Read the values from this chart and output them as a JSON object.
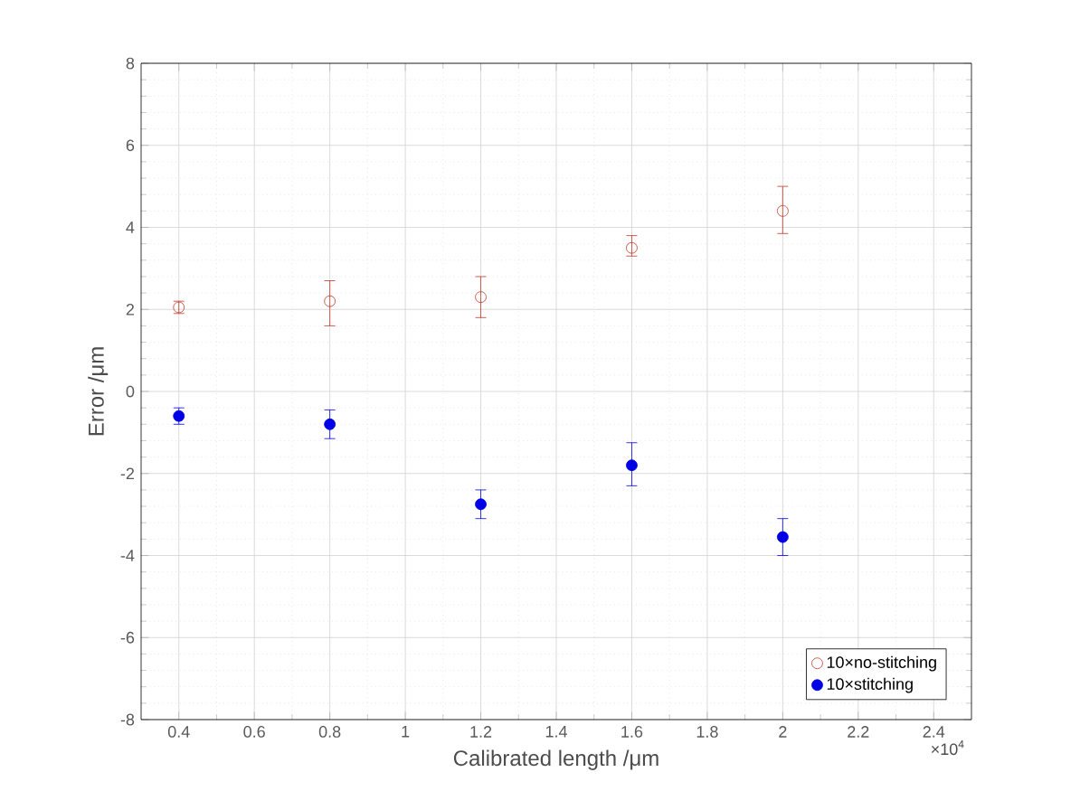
{
  "chart_data": {
    "type": "scatter",
    "xlabel": "Calibrated length /μm",
    "ylabel": "Error /μm",
    "x": [
      0.4,
      0.8,
      1.2,
      1.6,
      2
    ],
    "series": [
      {
        "name": "10×no-stitching",
        "color": "#c0392b",
        "values": [
          2.05,
          2.2,
          2.3,
          3.5,
          4.4
        ],
        "errors": [
          [
            1.9,
            2.2
          ],
          [
            1.6,
            2.7
          ],
          [
            1.8,
            2.8
          ],
          [
            3.3,
            3.8
          ],
          [
            3.85,
            5.0
          ]
        ]
      },
      {
        "name": "10×stitching",
        "color": "#0000e6",
        "values": [
          -0.6,
          -0.8,
          -2.75,
          -1.8,
          -3.55
        ],
        "errors": [
          [
            -0.8,
            -0.4
          ],
          [
            -1.15,
            -0.45
          ],
          [
            -3.1,
            -2.4
          ],
          [
            -2.3,
            -1.25
          ],
          [
            -4.0,
            -3.1
          ]
        ]
      }
    ],
    "xlim": [
      0.3,
      2.5
    ],
    "xticks": [
      0.4,
      0.6,
      0.8,
      1,
      1.2,
      1.4,
      1.6,
      1.8,
      2,
      2.2,
      2.4
    ],
    "ylim": [
      -8,
      8
    ],
    "yticks": [
      -8,
      -6,
      -4,
      -2,
      0,
      2,
      4,
      6,
      8
    ],
    "annotations": [
      "×10$^{4}$"
    ],
    "grid": true,
    "legend": "bottom right",
    "marker": "circle"
  }
}
